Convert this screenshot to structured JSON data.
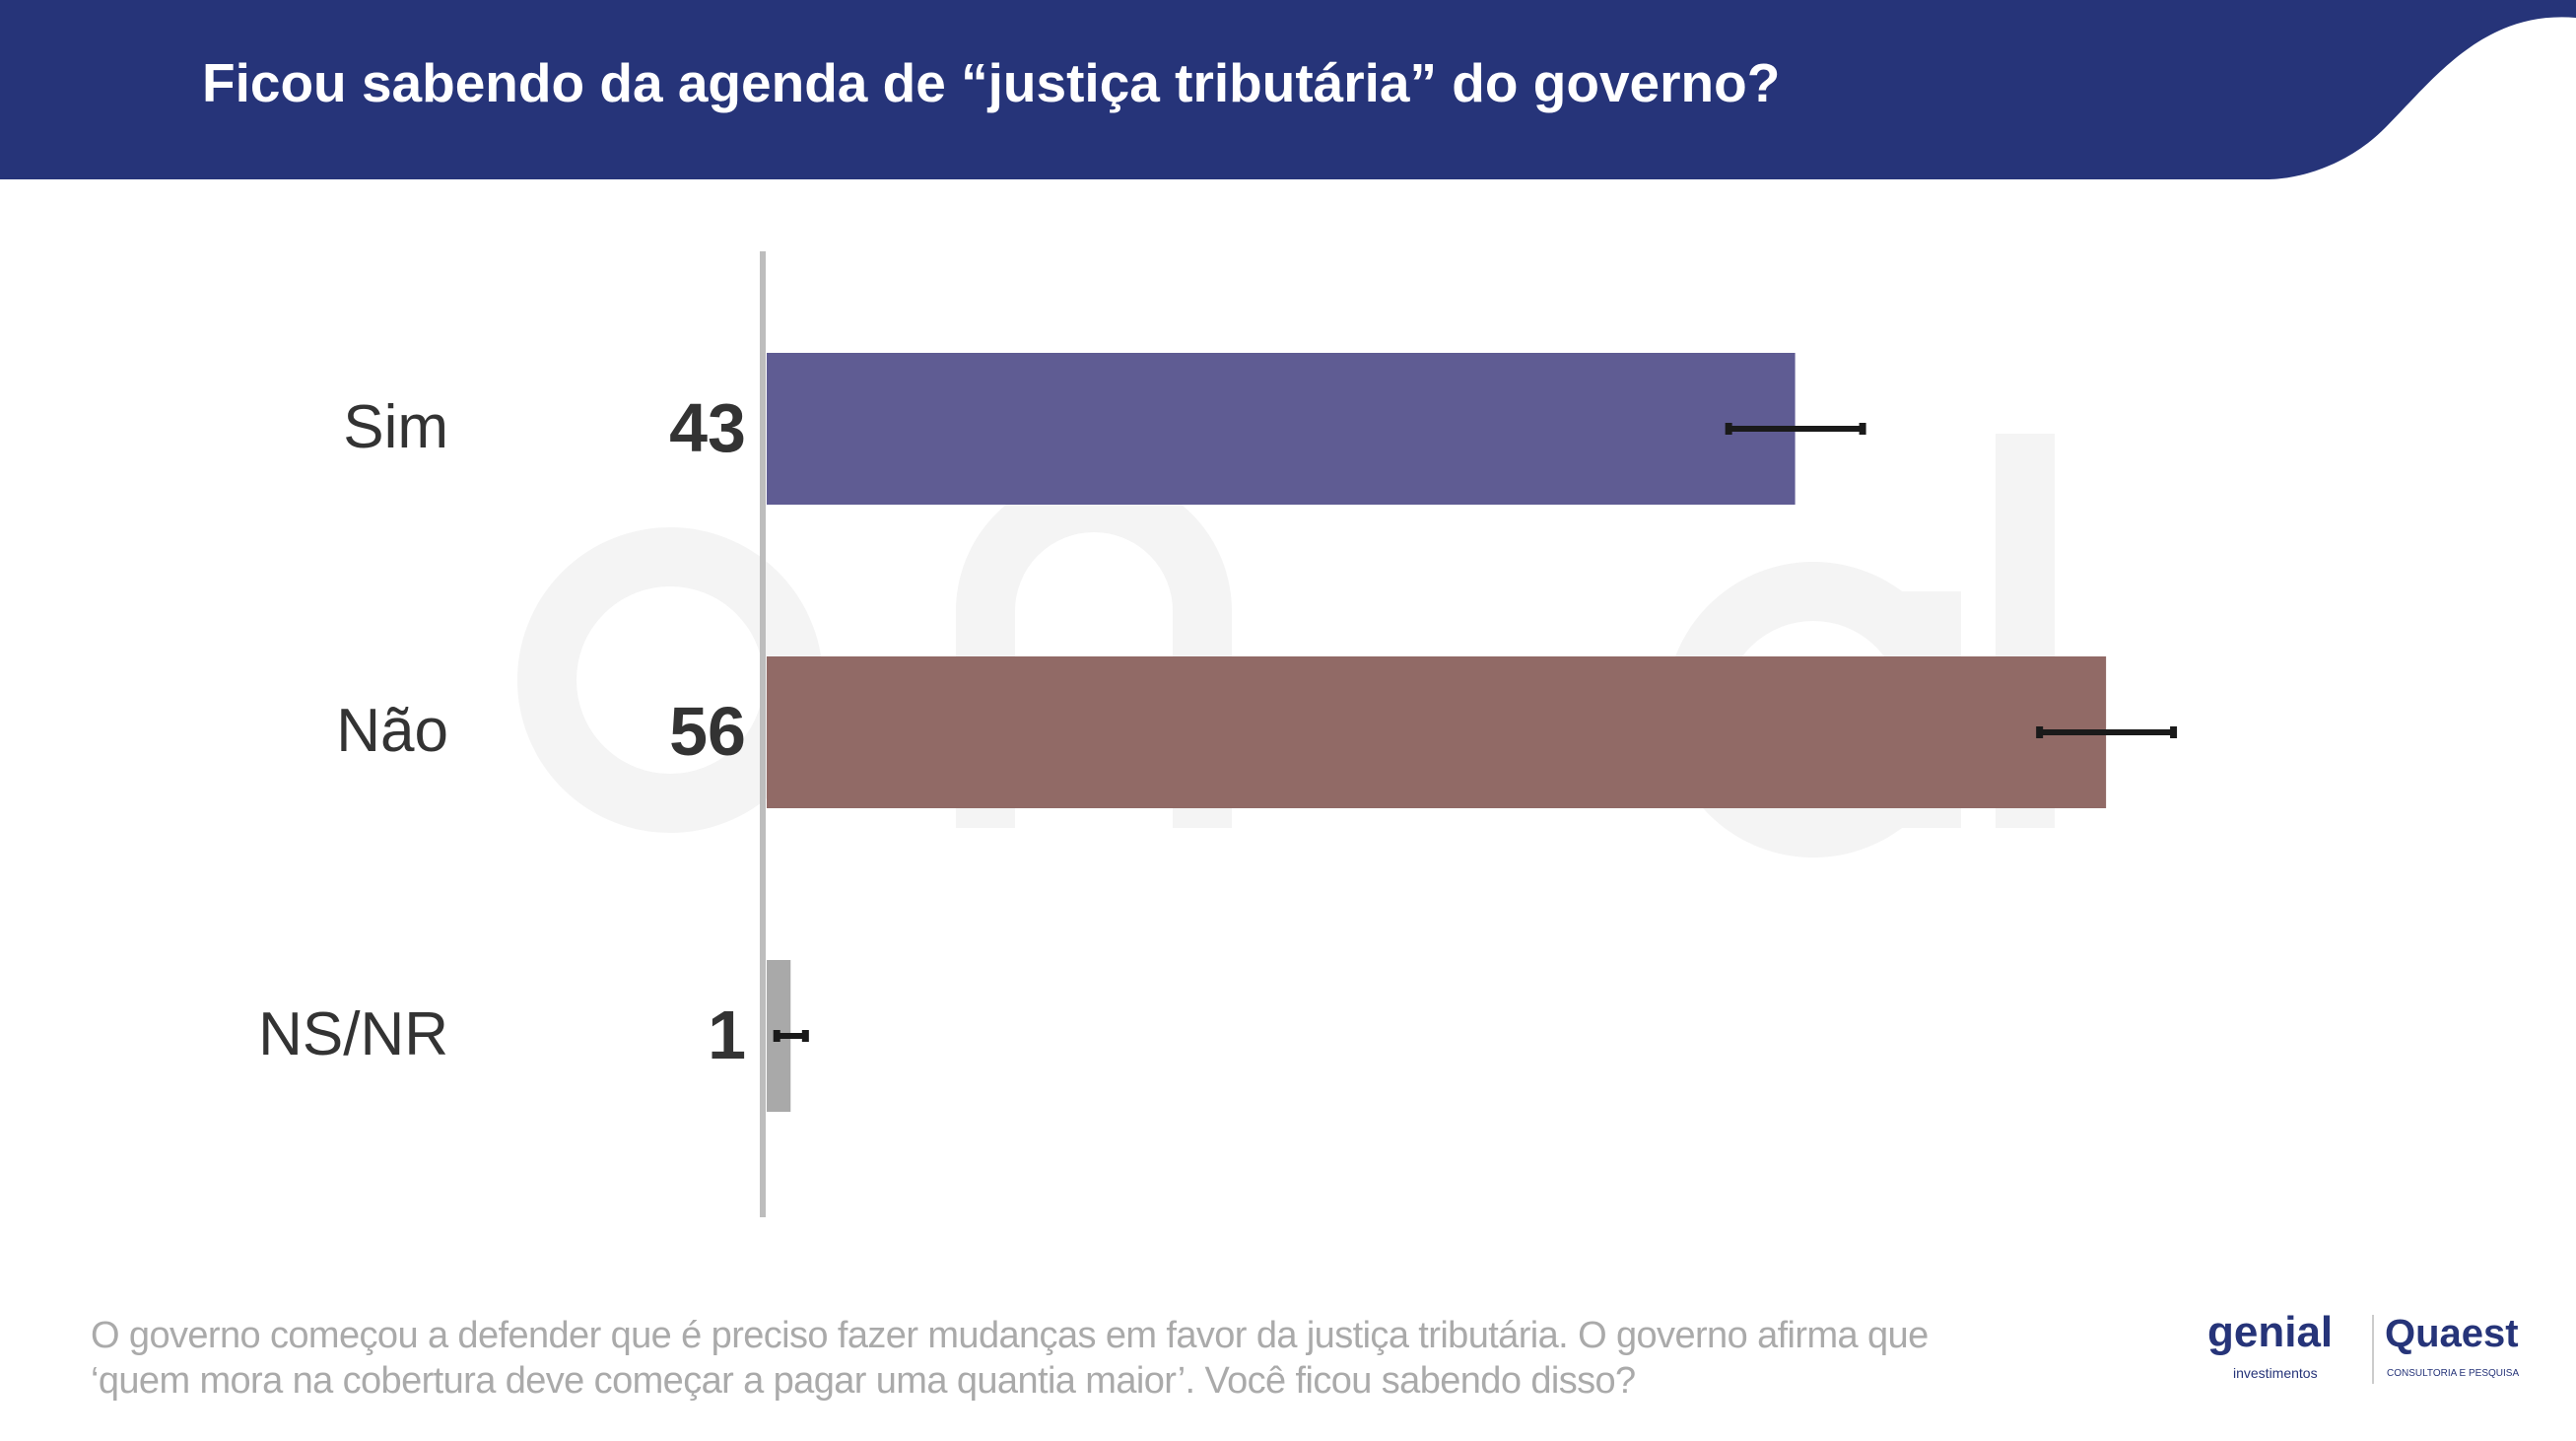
{
  "header": {
    "title": "Ficou sabendo da agenda de “justiça tributária” do governo?"
  },
  "watermark": {
    "line1": "genial",
    "line2": "investimentos"
  },
  "chart_data": {
    "type": "bar",
    "orientation": "horizontal",
    "title": "Ficou sabendo da agenda de “justiça tributária” do governo?",
    "categories": [
      "Sim",
      "Não",
      "NS/NR"
    ],
    "values": [
      43,
      56,
      1
    ],
    "value_labels": [
      "43",
      "56",
      "1"
    ],
    "error_margin": [
      2.8,
      2.8,
      0.6
    ],
    "colors": [
      "#5f5c93",
      "#916a66",
      "#a9a9a9"
    ],
    "xlim": [
      0,
      100
    ],
    "grid": false,
    "legend": "none"
  },
  "footer": {
    "line1": "O governo começou a defender que é preciso fazer mudanças em favor da justiça tributária. O governo afirma que",
    "line2": "‘quem mora na cobertura deve começar a pagar uma quantia maior’. Você ficou sabendo disso?"
  },
  "logos": {
    "genial": "genial",
    "genial_sub": "investimentos",
    "quaest": "Quaest",
    "quaest_sub": "CONSULTORIA E PESQUISA"
  },
  "colors": {
    "header": "#263479",
    "axis": "#bdbdbd",
    "error_bar": "#1a1a1a"
  }
}
